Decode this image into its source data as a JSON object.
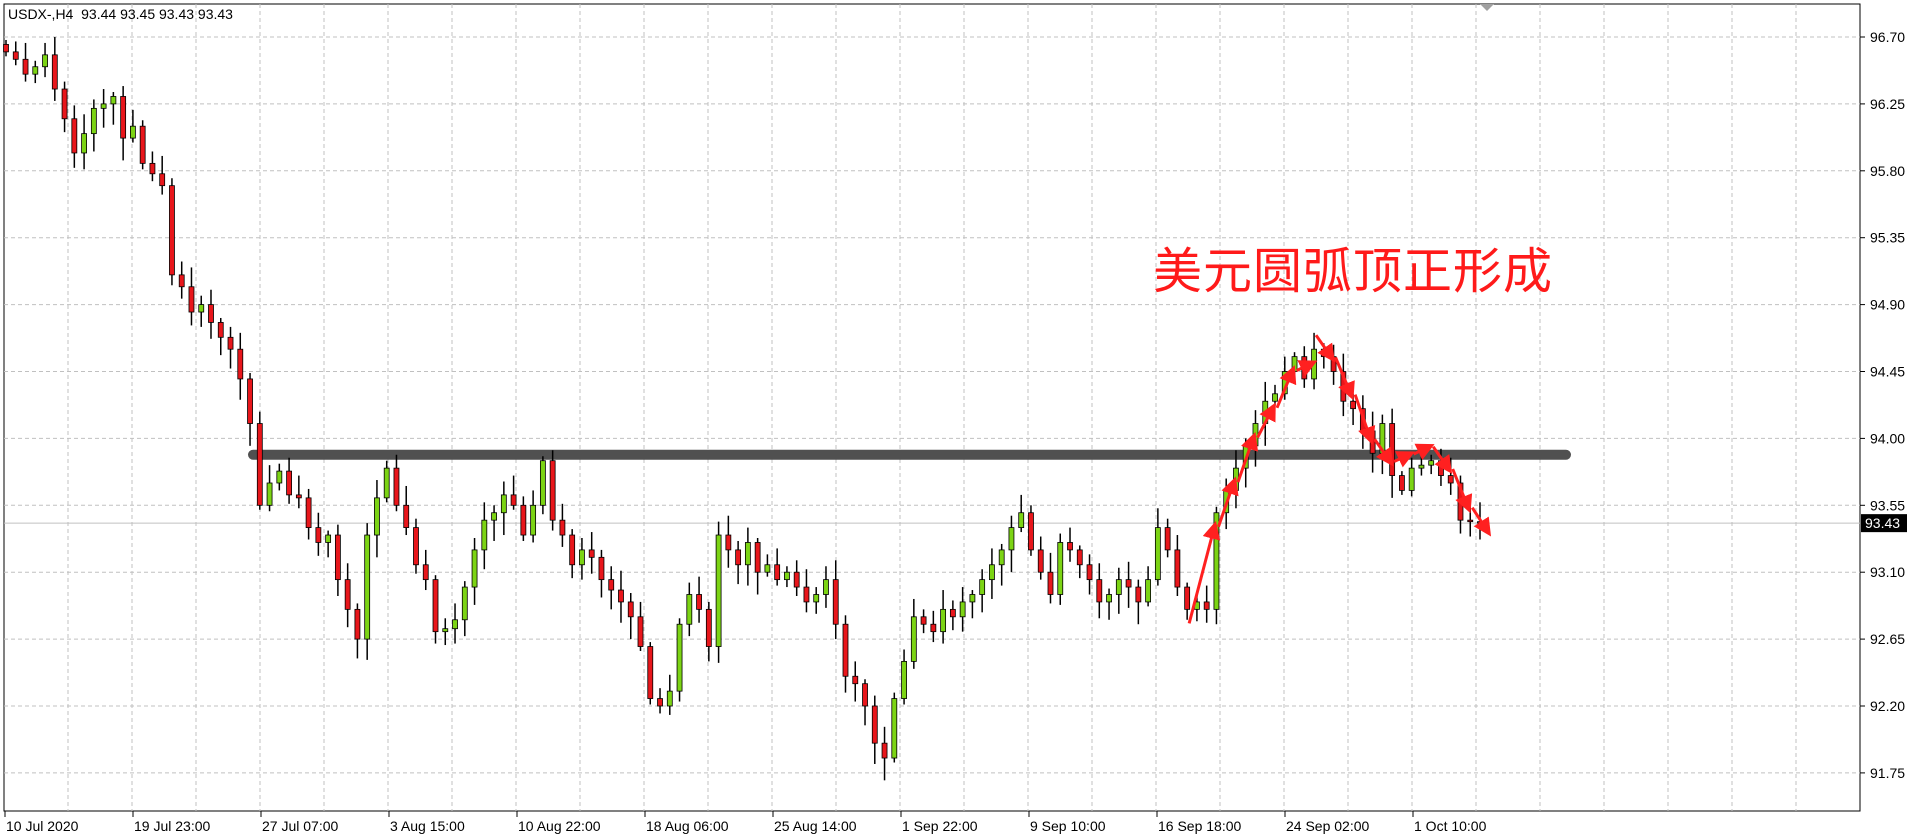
{
  "header": {
    "symbol": "USDX-,H4",
    "ohlc": "93.44 93.45 93.43 93.43"
  },
  "annotation": "美元圆弧顶正形成",
  "chart_data": {
    "type": "candlestick",
    "symbol": "USDX-",
    "timeframe": "H4",
    "ylim": [
      91.55,
      96.95
    ],
    "y_ticks": [
      "96.70",
      "96.25",
      "95.80",
      "95.35",
      "94.90",
      "94.45",
      "94.00",
      "93.55",
      "93.10",
      "92.65",
      "92.20",
      "91.75"
    ],
    "x_ticks": [
      "10 Jul 2020",
      "19 Jul 23:00",
      "27 Jul 07:00",
      "3 Aug 15:00",
      "10 Aug 22:00",
      "18 Aug 06:00",
      "25 Aug 14:00",
      "1 Sep 22:00",
      "9 Sep 10:00",
      "16 Sep 18:00",
      "24 Sep 02:00",
      "1 Oct 10:00"
    ],
    "grid": true,
    "current_price": "93.43",
    "horizontal_line": 93.89,
    "colors": {
      "bull": "#7cd414",
      "bear": "#e8161b",
      "line": "#505050",
      "arrow": "#ff2020",
      "grid": "#c0c0c0"
    },
    "first_open": 96.65,
    "closes": [
      96.6,
      96.55,
      96.45,
      96.5,
      96.58,
      96.35,
      96.15,
      95.92,
      96.05,
      96.22,
      96.25,
      96.3,
      96.02,
      96.1,
      95.85,
      95.78,
      95.7,
      95.1,
      95.02,
      94.85,
      94.9,
      94.78,
      94.68,
      94.6,
      94.4,
      94.1,
      93.55,
      93.7,
      93.78,
      93.62,
      93.6,
      93.4,
      93.3,
      93.35,
      93.05,
      92.85,
      92.65,
      93.35,
      93.6,
      93.8,
      93.55,
      93.4,
      93.15,
      93.05,
      92.7,
      92.72,
      92.78,
      93.0,
      93.25,
      93.45,
      93.5,
      93.62,
      93.55,
      93.35,
      93.55,
      93.85,
      93.45,
      93.35,
      93.15,
      93.25,
      93.2,
      93.05,
      92.98,
      92.9,
      92.8,
      92.6,
      92.25,
      92.2,
      92.3,
      92.75,
      92.95,
      92.85,
      92.6,
      93.35,
      93.25,
      93.15,
      93.3,
      93.1,
      93.15,
      93.05,
      93.1,
      93.0,
      92.9,
      92.95,
      93.05,
      92.75,
      92.4,
      92.35,
      92.2,
      91.95,
      91.85,
      92.25,
      92.5,
      92.8,
      92.75,
      92.7,
      92.85,
      92.8,
      92.9,
      92.95,
      93.05,
      93.15,
      93.25,
      93.4,
      93.5,
      93.25,
      93.1,
      92.95,
      93.3,
      93.25,
      93.15,
      93.05,
      92.9,
      92.95,
      93.05,
      93.0,
      92.9,
      93.05,
      93.4,
      93.25,
      93.0,
      92.85,
      92.9,
      92.85,
      93.5,
      93.65,
      93.8,
      93.95,
      94.1,
      94.25,
      94.3,
      94.45,
      94.55,
      94.4,
      94.6,
      94.55,
      94.45,
      94.25,
      94.2,
      94.05,
      93.9,
      94.1,
      93.75,
      93.65,
      93.8,
      93.82,
      93.85,
      93.75,
      93.7,
      93.45,
      93.44,
      93.43
    ]
  }
}
